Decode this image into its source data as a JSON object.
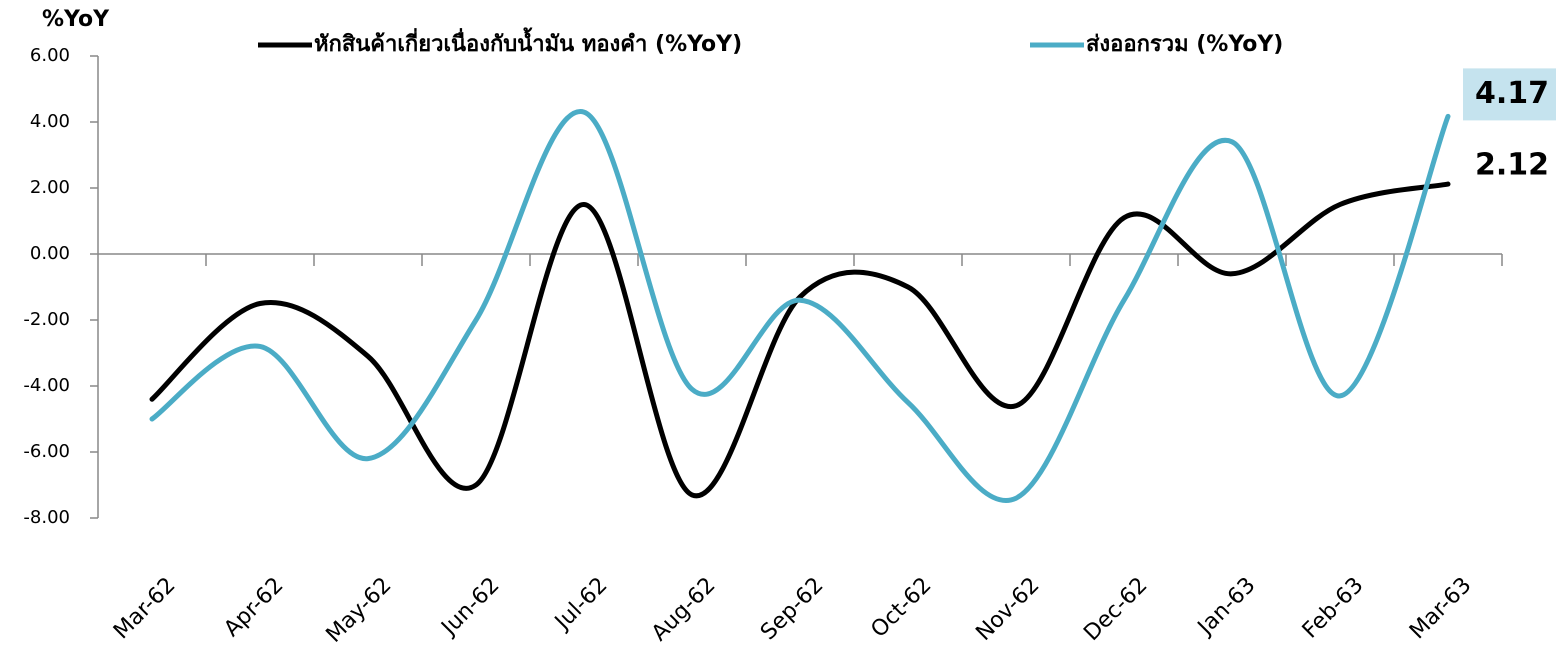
{
  "chart_data": {
    "type": "line",
    "y_axis_label": "%YoY",
    "categories": [
      "Mar-62",
      "Apr-62",
      "May-62",
      "Jun-62",
      "Jul-62",
      "Aug-62",
      "Sep-62",
      "Oct-62",
      "Nov-62",
      "Dec-62",
      "Jan-63",
      "Feb-63",
      "Mar-63"
    ],
    "series": [
      {
        "name": "หักสินค้าเกี่ยวเนื่องกับน้ำมัน ทองคำ (%YoY)",
        "color": "#000000",
        "values": [
          -4.4,
          -1.5,
          -3.1,
          -7.0,
          1.5,
          -7.3,
          -1.3,
          -1.0,
          -4.6,
          1.1,
          -0.6,
          1.5,
          2.12
        ]
      },
      {
        "name": "ส่งออกรวม (%YoY)",
        "color": "#4bacc6",
        "values": [
          -5.0,
          -2.8,
          -6.2,
          -2.0,
          4.3,
          -4.1,
          -1.4,
          -4.5,
          -7.4,
          -1.4,
          3.4,
          -4.3,
          4.17
        ]
      }
    ],
    "ylim": [
      -8,
      6
    ],
    "yticks": [
      {
        "value": -8,
        "label": "-8.00"
      },
      {
        "value": -6,
        "label": "-6.00"
      },
      {
        "value": -4,
        "label": "-4.00"
      },
      {
        "value": -2,
        "label": "-2.00"
      },
      {
        "value": 0,
        "label": "0.00"
      },
      {
        "value": 2,
        "label": "2.00"
      },
      {
        "value": 4,
        "label": "4.00"
      },
      {
        "value": 6,
        "label": "6.00"
      }
    ],
    "grid": false
  }
}
